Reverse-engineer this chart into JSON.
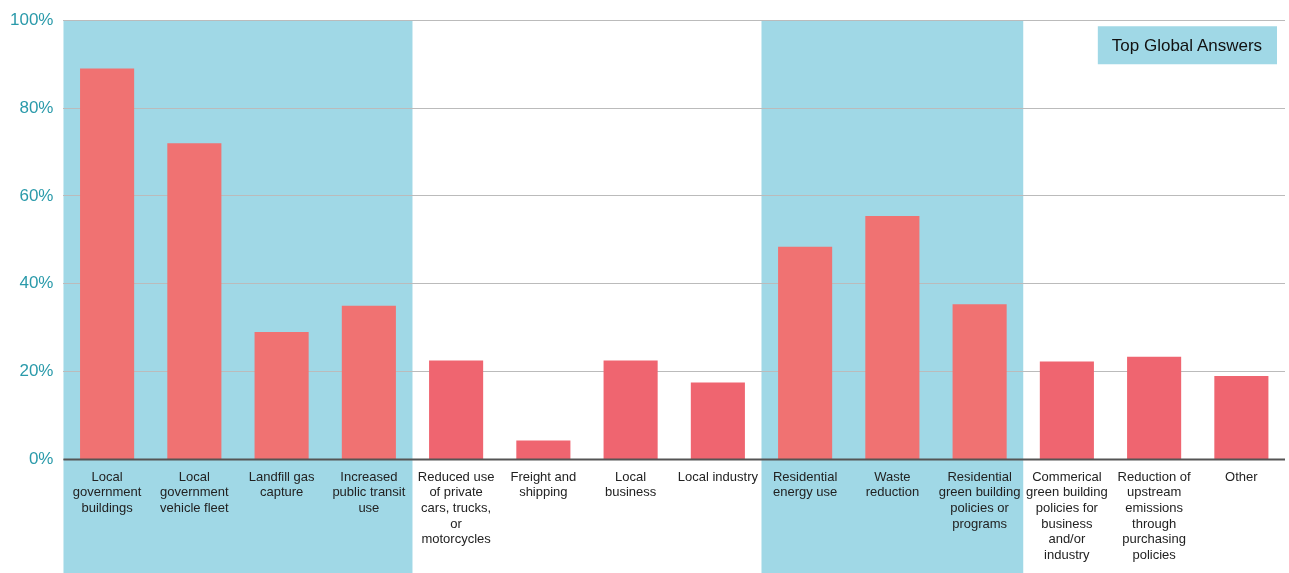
{
  "chart_data": {
    "type": "bar",
    "categories": [
      "Local government buildings",
      "Local government vehicle fleet",
      "Landfill gas capture",
      "Increased public transit use",
      "Reduced use of private cars, trucks, or motorcycles",
      "Freight and shipping",
      "Local business",
      "Local industry",
      "Residential energy use",
      "Waste reduction",
      "Residential green building policies or programs",
      "Commerical green building policies for business and/or industry",
      "Reduction of upstream emissions through purchasing policies",
      "Other"
    ],
    "values": [
      89,
      72,
      29,
      35,
      22.5,
      4.3,
      22.5,
      17.5,
      48.4,
      55.4,
      35.3,
      22.3,
      23.4,
      19
    ],
    "colors": [
      "#f07272",
      "#f07272",
      "#f07272",
      "#f07272",
      "#ef6570",
      "#ef6570",
      "#ef6570",
      "#ef6570",
      "#f07272",
      "#f07272",
      "#f07272",
      "#ef6570",
      "#ef6570",
      "#ef6570"
    ],
    "ylim": [
      0,
      100
    ],
    "yticks": [
      {
        "value": 0,
        "label": "0%"
      },
      {
        "value": 20,
        "label": "20%"
      },
      {
        "value": 40,
        "label": "40%"
      },
      {
        "value": 60,
        "label": "60%"
      },
      {
        "value": 80,
        "label": "80%"
      },
      {
        "value": 100,
        "label": "100%"
      }
    ],
    "grid": "y",
    "bands": [
      {
        "axis": "x",
        "from": "Local government buildings",
        "to": "Increased public transit use",
        "color": "#a0d8e6"
      },
      {
        "axis": "x",
        "from": "Residential energy use",
        "to": "Residential green building policies or programs",
        "color": "#a0d8e6"
      }
    ],
    "annotations": [
      "Top Global Answers"
    ]
  }
}
